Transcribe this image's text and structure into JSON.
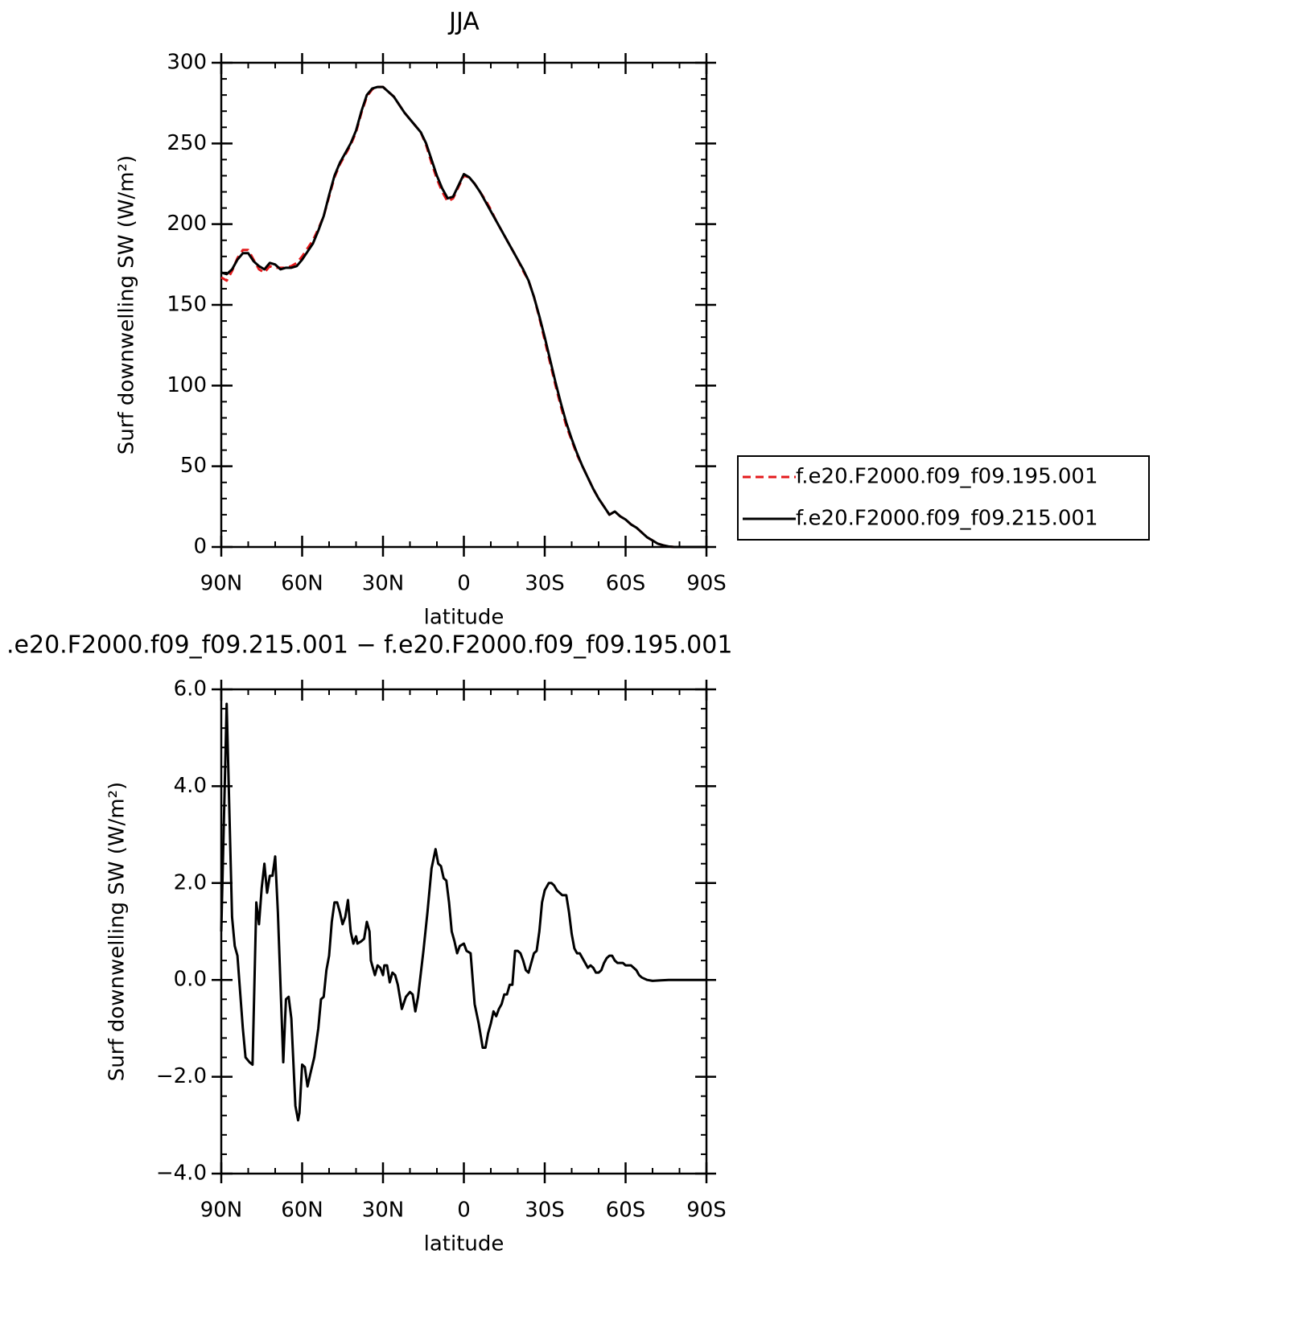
{
  "chart_data": [
    {
      "type": "line",
      "title": "JJA",
      "ylabel": "Surf downwelling SW (W/m²)",
      "xlabel": "latitude",
      "xlim": [
        90,
        -90
      ],
      "xticks": [
        {
          "value": 90,
          "label": "90N"
        },
        {
          "value": 60,
          "label": "60N"
        },
        {
          "value": 30,
          "label": "30N"
        },
        0,
        {
          "value": -30,
          "label": "30S"
        },
        {
          "value": -60,
          "label": "60S"
        },
        {
          "value": -90,
          "label": "90S"
        }
      ],
      "ylim": [
        0,
        300
      ],
      "yticks": [
        0,
        50,
        100,
        150,
        200,
        250,
        300
      ],
      "legend": "right",
      "x": [
        90,
        88,
        86,
        84,
        82,
        80,
        78,
        76,
        74,
        72,
        70,
        68,
        66,
        64,
        62,
        60,
        58,
        56,
        54,
        52,
        50,
        48,
        46,
        44,
        42,
        40,
        38,
        36,
        34,
        32,
        30,
        28,
        26,
        24,
        22,
        20,
        18,
        16,
        14,
        12,
        10,
        8,
        6,
        4,
        2,
        0,
        -2,
        -4,
        -6,
        -8,
        -10,
        -12,
        -14,
        -16,
        -18,
        -20,
        -22,
        -24,
        -26,
        -28,
        -30,
        -32,
        -34,
        -36,
        -38,
        -40,
        -42,
        -44,
        -46,
        -48,
        -50,
        -52,
        -54,
        -56,
        -58,
        -60,
        -62,
        -64,
        -66,
        -68,
        -70,
        -72,
        -74,
        -76,
        -78,
        -80,
        -82,
        -84,
        -86,
        -88,
        -90
      ],
      "series": [
        {
          "name": "f.e20.F2000.f09_f09.195.001",
          "color": "#e41a1c",
          "line_style": "dashed",
          "values": [
            167,
            165,
            171,
            179,
            184,
            184,
            178,
            172,
            170,
            174,
            173,
            173,
            173,
            174,
            176,
            180,
            185,
            190,
            197,
            205,
            217,
            229,
            237,
            243,
            249,
            257,
            269,
            279,
            283.5,
            285,
            285,
            282,
            279,
            274,
            269,
            265,
            261,
            257,
            249,
            238,
            228,
            220,
            214,
            216,
            223,
            230,
            229,
            225,
            220,
            215,
            209,
            202,
            196,
            190,
            184,
            178,
            171,
            165,
            155,
            142,
            128,
            114,
            100,
            87,
            75,
            66,
            57,
            50,
            43,
            36,
            30,
            25,
            20,
            22,
            19,
            17,
            14,
            12,
            9,
            6,
            4,
            2,
            1,
            0.3,
            0,
            0,
            0,
            0,
            0,
            0,
            0
          ]
        },
        {
          "name": "f.e20.F2000.f09_f09.215.001",
          "color": "#000000",
          "line_style": "solid",
          "values": [
            170,
            169,
            172,
            178,
            182,
            182,
            177,
            174,
            172,
            176,
            175,
            172,
            173,
            173,
            174,
            178,
            183,
            188,
            196,
            205,
            218,
            230,
            238,
            244,
            250,
            258,
            270,
            280,
            284,
            285,
            285,
            282,
            279,
            274,
            269,
            265,
            261,
            257,
            250,
            240,
            230,
            222,
            216,
            217,
            224,
            231,
            229,
            225,
            220,
            214,
            208,
            202,
            196,
            190,
            184,
            178,
            172,
            165,
            155,
            143,
            130,
            116,
            102,
            89,
            77,
            67,
            58,
            50,
            43,
            36,
            30,
            25,
            20,
            22,
            19,
            17,
            14,
            12,
            9,
            6,
            4,
            2,
            1,
            0.3,
            0,
            0,
            0,
            0,
            0,
            0,
            0
          ]
        }
      ]
    },
    {
      "type": "line",
      "title": ".e20.F2000.f09_f09.215.001 − f.e20.F2000.f09_f09.195.001",
      "ylabel": "Surf downwelling SW (W/m²)",
      "xlabel": "latitude",
      "xlim": [
        90,
        -90
      ],
      "xticks": [
        {
          "value": 90,
          "label": "90N"
        },
        {
          "value": 60,
          "label": "60N"
        },
        {
          "value": 30,
          "label": "30N"
        },
        0,
        {
          "value": -30,
          "label": "30S"
        },
        {
          "value": -60,
          "label": "60S"
        },
        {
          "value": -90,
          "label": "90S"
        }
      ],
      "ylim": [
        -4,
        6
      ],
      "yticks": [
        {
          "value": -4,
          "label": "−4.0"
        },
        {
          "value": -2,
          "label": "−2.0"
        },
        {
          "value": 0,
          "label": "0.0"
        },
        {
          "value": 2,
          "label": "2.0"
        },
        {
          "value": 4,
          "label": "4.0"
        },
        {
          "value": 6,
          "label": "6.0"
        }
      ],
      "color": "#000000",
      "x": [
        90,
        88,
        86,
        85,
        84,
        82,
        81,
        79.5,
        78.4,
        77,
        76,
        75,
        74,
        73,
        72,
        71,
        70,
        69,
        67,
        66,
        65,
        64,
        62.5,
        61.5,
        61,
        60,
        59,
        58,
        57,
        55.5,
        54,
        53,
        52,
        51,
        50,
        49,
        48,
        47,
        46,
        45,
        44,
        43,
        42,
        41,
        40,
        39.5,
        38,
        37,
        36,
        35,
        34.5,
        33,
        32,
        31,
        30,
        29.5,
        28.5,
        27.5,
        26.5,
        25.5,
        24.5,
        23,
        21.5,
        20,
        19,
        18,
        17,
        15,
        13.5,
        12,
        10.5,
        9.5,
        8.5,
        7.5,
        6.5,
        5.5,
        4.5,
        3.5,
        2.5,
        1.5,
        0,
        -1,
        -2.5,
        -4,
        -5.5,
        -7,
        -8,
        -9,
        -10,
        -11,
        -12,
        -13,
        -14,
        -15,
        -16,
        -17,
        -18,
        -19,
        -20,
        -21,
        -22,
        -23,
        -24,
        -25,
        -26,
        -27,
        -28,
        -29,
        -30,
        -31.5,
        -32.5,
        -33.5,
        -34.5,
        -35.5,
        -36.5,
        -38,
        -39,
        -40,
        -41,
        -42,
        -43,
        -44,
        -45,
        -46,
        -47,
        -48,
        -49,
        -50,
        -51,
        -52,
        -53,
        -54,
        -55,
        -56,
        -57,
        -58,
        -59,
        -60,
        -61,
        -62,
        -63,
        -64,
        -65,
        -66,
        -68,
        -70,
        -73,
        -76,
        -80,
        -90
      ],
      "values": [
        1.0,
        5.7,
        1.3,
        0.7,
        0.5,
        -1.0,
        -1.6,
        -1.7,
        -1.75,
        1.6,
        1.15,
        1.9,
        2.4,
        1.8,
        2.15,
        2.15,
        2.55,
        1.4,
        -1.7,
        -0.4,
        -0.35,
        -0.8,
        -2.6,
        -2.9,
        -2.75,
        -1.75,
        -1.8,
        -2.2,
        -1.95,
        -1.6,
        -1.0,
        -0.4,
        -0.35,
        0.2,
        0.5,
        1.2,
        1.6,
        1.6,
        1.4,
        1.15,
        1.3,
        1.65,
        1.0,
        0.75,
        0.9,
        0.75,
        0.8,
        0.85,
        1.2,
        1.0,
        0.4,
        0.1,
        0.3,
        0.25,
        0.1,
        0.3,
        0.3,
        -0.05,
        0.15,
        0.1,
        -0.1,
        -0.6,
        -0.35,
        -0.25,
        -0.3,
        -0.65,
        -0.35,
        0.6,
        1.4,
        2.3,
        2.7,
        2.4,
        2.35,
        2.1,
        2.05,
        1.6,
        1.0,
        0.8,
        0.55,
        0.7,
        0.75,
        0.6,
        0.55,
        -0.5,
        -0.9,
        -1.4,
        -1.4,
        -1.1,
        -0.9,
        -0.65,
        -0.75,
        -0.6,
        -0.5,
        -0.3,
        -0.3,
        -0.1,
        -0.1,
        0.6,
        0.6,
        0.55,
        0.4,
        0.2,
        0.15,
        0.35,
        0.55,
        0.6,
        1.0,
        1.6,
        1.85,
        2.0,
        2.0,
        1.95,
        1.85,
        1.8,
        1.75,
        1.75,
        1.4,
        0.95,
        0.65,
        0.55,
        0.55,
        0.45,
        0.35,
        0.25,
        0.3,
        0.25,
        0.15,
        0.15,
        0.2,
        0.35,
        0.45,
        0.5,
        0.5,
        0.4,
        0.35,
        0.35,
        0.35,
        0.3,
        0.3,
        0.3,
        0.25,
        0.2,
        0.1,
        0.05,
        0,
        -0.02,
        -0.01,
        0,
        0,
        0
      ]
    }
  ]
}
